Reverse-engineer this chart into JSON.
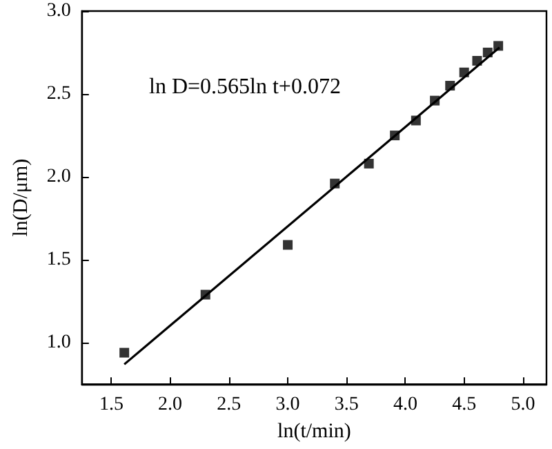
{
  "chart_data": {
    "type": "scatter",
    "xlabel": "ln(t/min)",
    "ylabel": "ln(D/μm)",
    "annotations": [
      "ln D=0.565ln t+0.072"
    ],
    "xlim": [
      1.25,
      5.2
    ],
    "ylim": [
      0.75,
      3.0
    ],
    "xticks": [
      1.5,
      {
        "value": 2,
        "label": "2.0"
      },
      2.5,
      {
        "value": 3,
        "label": "3.0"
      },
      3.5,
      {
        "value": 4,
        "label": "4.0"
      },
      4.5,
      {
        "value": 5,
        "label": "5.0"
      }
    ],
    "yticks": [
      {
        "value": 1,
        "label": "1.0"
      },
      1.5,
      {
        "value": 2,
        "label": "2.0"
      },
      2.5,
      {
        "value": 3,
        "label": "3.0"
      }
    ],
    "grid": false,
    "series": [
      {
        "marker": "square",
        "color": "#000000",
        "x": [
          1.61,
          2.3,
          3.0,
          3.4,
          3.69,
          3.91,
          4.09,
          4.25,
          4.38,
          4.5,
          4.61,
          4.7,
          4.79
        ],
        "values": [
          0.94,
          1.29,
          1.59,
          1.96,
          2.08,
          2.25,
          2.34,
          2.46,
          2.55,
          2.63,
          2.7,
          2.75,
          2.79
        ]
      },
      {
        "type": "line",
        "marker": "none",
        "color": "#000000",
        "x": [
          1.61,
          4.8
        ],
        "values": [
          0.87,
          2.78
        ]
      }
    ]
  }
}
